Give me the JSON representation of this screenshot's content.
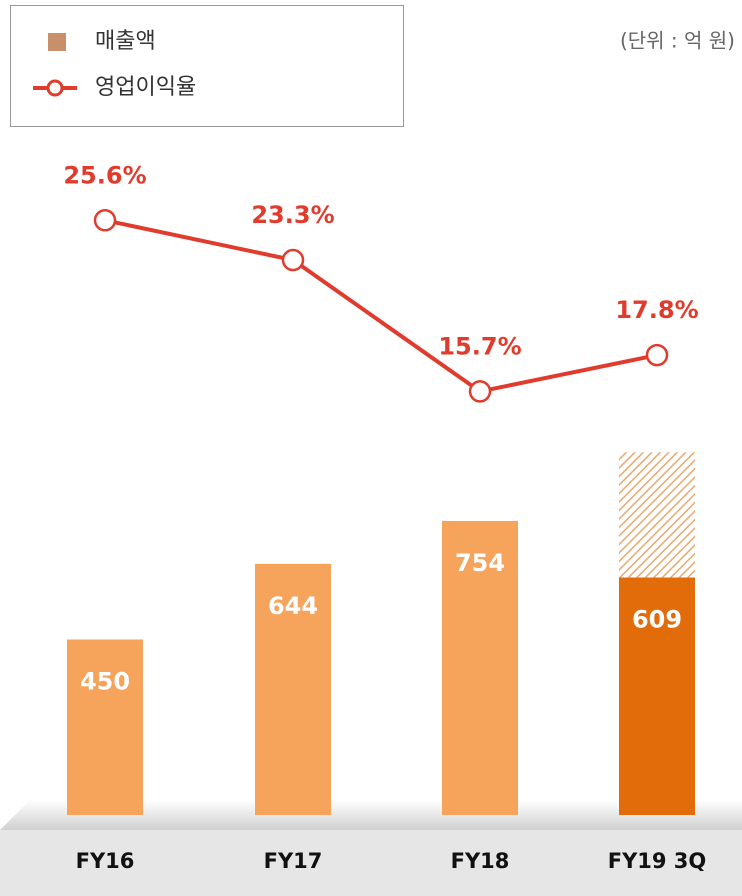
{
  "chart_data": {
    "type": "bar_line",
    "subtitle": "(단위 : 억 원)",
    "categories": [
      "FY16",
      "FY17",
      "FY18",
      "FY19 3Q"
    ],
    "ylim": [
      0,
      1000
    ],
    "y2lim": [
      -8.8,
      31.4
    ],
    "series": [
      {
        "name": "매출액",
        "type": "bar",
        "color": "#c8906a",
        "colors": [
          "#f6a35c",
          "#f6a35c",
          "#f6a35c",
          "#e36c0a"
        ],
        "values": [
          450,
          644,
          754,
          609
        ]
      },
      {
        "type": "bar",
        "pattern": "hatch",
        "color": "#e8a870",
        "values": [
          null,
          null,
          null,
          321
        ]
      },
      {
        "name": "영업이익율",
        "type": "line",
        "axis": "y2",
        "color": "#e03c2d",
        "values": [
          25.6,
          23.3,
          15.7,
          17.8
        ],
        "value_labels": [
          "25.6%",
          "23.3%",
          "15.7%",
          "17.8%"
        ]
      }
    ]
  }
}
